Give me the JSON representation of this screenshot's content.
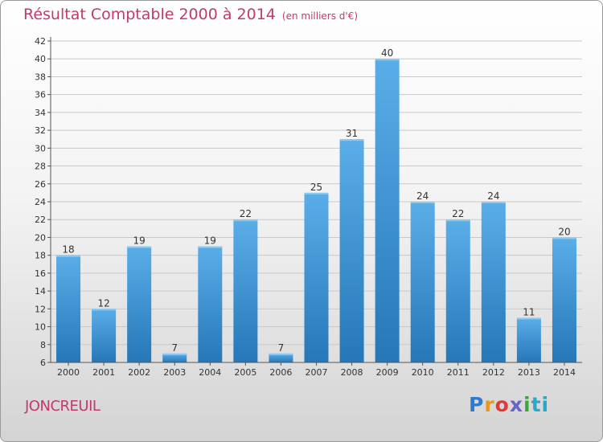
{
  "header": {
    "title": "Résultat Comptable 2000 à 2014",
    "unit": "(en milliers d'€)"
  },
  "footer": {
    "town": "JONCREUIL",
    "logo_letters": [
      "P",
      "r",
      "o",
      "x",
      "i",
      "ti"
    ]
  },
  "colors": {
    "bar_top": "#5aaee8",
    "bar_bottom": "#2577b8",
    "grid": "#c9c9c9",
    "title": "#c03a6e"
  },
  "chart_data": {
    "type": "bar",
    "title": "Résultat Comptable 2000 à 2014",
    "xlabel": "",
    "ylabel": "",
    "ylim": [
      6,
      42
    ],
    "y_ticks": [
      6,
      8,
      10,
      12,
      14,
      16,
      18,
      20,
      22,
      24,
      26,
      28,
      30,
      32,
      34,
      36,
      38,
      40,
      42
    ],
    "categories": [
      "2000",
      "2001",
      "2002",
      "2003",
      "2004",
      "2005",
      "2006",
      "2007",
      "2008",
      "2009",
      "2010",
      "2011",
      "2012",
      "2013",
      "2014"
    ],
    "values": [
      18,
      12,
      19,
      7,
      19,
      22,
      7,
      25,
      31,
      40,
      24,
      22,
      24,
      11,
      20
    ]
  }
}
